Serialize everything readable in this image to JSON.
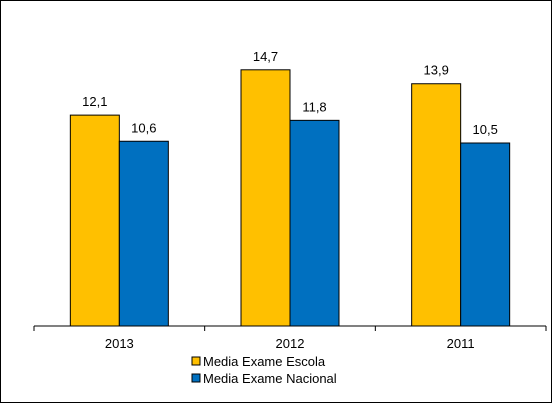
{
  "chart_data": {
    "type": "bar",
    "categories": [
      "2013",
      "2012",
      "2011"
    ],
    "series": [
      {
        "name": "Media Exame Escola",
        "values": [
          12.1,
          14.7,
          13.9
        ],
        "color": "#FFC000"
      },
      {
        "name": "Media Exame Nacional",
        "values": [
          10.6,
          11.8,
          10.5
        ],
        "color": "#0070C0"
      }
    ],
    "data_labels": {
      "series0": [
        "12,1",
        "14,7",
        "13,9"
      ],
      "series1": [
        "10,6",
        "11,8",
        "10,5"
      ]
    },
    "ylim": [
      0,
      17.5
    ],
    "grid": false,
    "legend_position": "bottom"
  }
}
